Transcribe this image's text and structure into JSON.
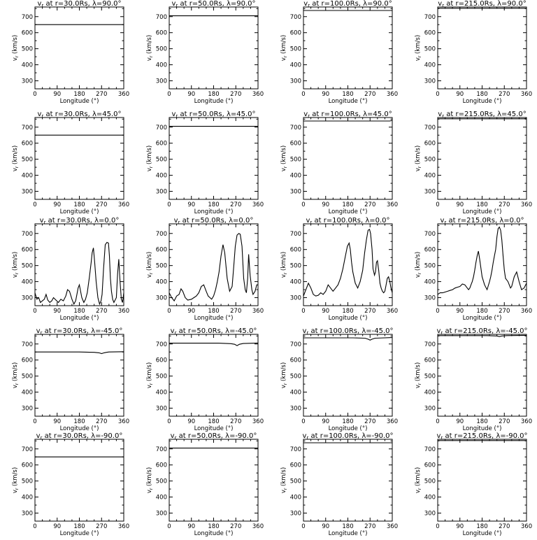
{
  "chart_data": {
    "type": "line",
    "layout": "5x4 grid of panels",
    "xlabel": "Longitude (°)",
    "ylabel": "v_r (km/s)",
    "xlim": [
      0,
      360
    ],
    "ylim": [
      250,
      760
    ],
    "xticks": [
      0,
      90,
      180,
      270,
      360
    ],
    "yticks": [
      300,
      400,
      500,
      600,
      700
    ],
    "grid": false,
    "panels": [
      {
        "title": "v_r at r=30.0Rs, λ=90.0°",
        "x": [
          0,
          360
        ],
        "y": [
          650,
          650
        ]
      },
      {
        "title": "v_r at r=50.0Rs, λ=90.0°",
        "x": [
          0,
          360
        ],
        "y": [
          705,
          705
        ]
      },
      {
        "title": "v_r at r=100.0Rs, λ=90.0°",
        "x": [
          0,
          360
        ],
        "y": [
          738,
          738
        ]
      },
      {
        "title": "v_r at r=215.0Rs, λ=90.0°",
        "x": [
          0,
          360
        ],
        "y": [
          752,
          752
        ]
      },
      {
        "title": "v_r at r=30.0Rs, λ=45.0°",
        "x": [
          0,
          360
        ],
        "y": [
          650,
          650
        ]
      },
      {
        "title": "v_r at r=50.0Rs, λ=45.0°",
        "x": [
          0,
          360
        ],
        "y": [
          705,
          705
        ]
      },
      {
        "title": "v_r at r=100.0Rs, λ=45.0°",
        "x": [
          0,
          350,
          360
        ],
        "y": [
          738,
          738,
          742
        ]
      },
      {
        "title": "v_r at r=215.0Rs, λ=45.0°",
        "x": [
          0,
          350,
          360
        ],
        "y": [
          752,
          752,
          755
        ]
      },
      {
        "title": "v_r at r=30.0Rs, λ=0.0°",
        "x": [
          0,
          8,
          15,
          22,
          30,
          38,
          45,
          52,
          60,
          68,
          75,
          85,
          95,
          105,
          115,
          125,
          132,
          140,
          150,
          158,
          165,
          170,
          175,
          180,
          190,
          198,
          205,
          212,
          220,
          228,
          232,
          237,
          242,
          248,
          255,
          262,
          268,
          272,
          278,
          285,
          292,
          298,
          302,
          306,
          310,
          315,
          320,
          330,
          335,
          340,
          345,
          350,
          355,
          360
        ],
        "y": [
          330,
          290,
          300,
          270,
          280,
          290,
          320,
          285,
          270,
          280,
          300,
          285,
          270,
          290,
          280,
          310,
          350,
          340,
          290,
          260,
          280,
          320,
          360,
          380,
          300,
          270,
          290,
          330,
          420,
          520,
          580,
          610,
          520,
          400,
          300,
          260,
          280,
          320,
          480,
          630,
          645,
          640,
          560,
          420,
          340,
          290,
          270,
          300,
          450,
          540,
          400,
          290,
          270,
          330
        ]
      },
      {
        "title": "v_r at r=50.0Rs, λ=0.0°",
        "x": [
          0,
          10,
          20,
          30,
          40,
          48,
          55,
          65,
          75,
          90,
          100,
          110,
          120,
          130,
          140,
          150,
          158,
          165,
          172,
          180,
          188,
          195,
          202,
          210,
          218,
          225,
          235,
          245,
          255,
          262,
          268,
          275,
          282,
          288,
          295,
          302,
          308,
          313,
          318,
          322,
          328,
          335,
          340,
          348,
          355,
          360
        ],
        "y": [
          330,
          300,
          280,
          310,
          320,
          355,
          340,
          300,
          285,
          290,
          300,
          310,
          330,
          370,
          380,
          340,
          310,
          300,
          290,
          310,
          350,
          400,
          460,
          560,
          630,
          580,
          420,
          340,
          370,
          500,
          620,
          690,
          700,
          695,
          620,
          420,
          350,
          330,
          420,
          570,
          440,
          350,
          320,
          340,
          380,
          380
        ]
      },
      {
        "title": "v_r at r=100.0Rs, λ=0.0°",
        "x": [
          0,
          10,
          20,
          30,
          40,
          50,
          60,
          70,
          80,
          90,
          100,
          110,
          120,
          130,
          140,
          150,
          160,
          170,
          178,
          185,
          190,
          195,
          200,
          210,
          220,
          230,
          240,
          248,
          255,
          262,
          268,
          272,
          278,
          282,
          288,
          292,
          296,
          300,
          305,
          310,
          315,
          320,
          325,
          330,
          335,
          340,
          345,
          350,
          355,
          360
        ],
        "y": [
          310,
          350,
          390,
          360,
          320,
          310,
          315,
          330,
          320,
          340,
          380,
          360,
          340,
          360,
          380,
          420,
          480,
          560,
          620,
          640,
          600,
          520,
          460,
          390,
          360,
          400,
          470,
          580,
          660,
          720,
          725,
          700,
          600,
          480,
          440,
          460,
          520,
          530,
          470,
          390,
          360,
          340,
          330,
          340,
          380,
          420,
          430,
          400,
          360,
          330
        ]
      },
      {
        "title": "v_r at r=215.0Rs, λ=0.0°",
        "x": [
          0,
          10,
          20,
          30,
          40,
          50,
          60,
          70,
          80,
          90,
          100,
          110,
          120,
          125,
          130,
          135,
          140,
          145,
          150,
          155,
          160,
          165,
          170,
          180,
          190,
          200,
          210,
          215,
          220,
          225,
          230,
          235,
          240,
          245,
          250,
          255,
          260,
          265,
          270,
          275,
          280,
          285,
          290,
          295,
          300,
          305,
          310,
          320,
          330,
          340,
          350,
          360
        ],
        "y": [
          320,
          330,
          330,
          335,
          340,
          345,
          350,
          360,
          365,
          370,
          385,
          380,
          360,
          350,
          360,
          380,
          400,
          430,
          470,
          520,
          560,
          590,
          540,
          430,
          380,
          350,
          400,
          430,
          470,
          520,
          560,
          600,
          680,
          730,
          740,
          720,
          660,
          560,
          470,
          420,
          410,
          400,
          380,
          360,
          370,
          400,
          430,
          460,
          400,
          350,
          360,
          390
        ]
      },
      {
        "title": "v_r at r=30.0Rs, λ=-45.0°",
        "x": [
          0,
          180,
          240,
          260,
          270,
          280,
          290,
          300,
          360
        ],
        "y": [
          650,
          650,
          648,
          645,
          640,
          645,
          648,
          650,
          652
        ]
      },
      {
        "title": "v_r at r=50.0Rs, λ=-45.0°",
        "x": [
          0,
          200,
          250,
          265,
          275,
          285,
          300,
          360
        ],
        "y": [
          705,
          705,
          702,
          698,
          690,
          698,
          703,
          706
        ]
      },
      {
        "title": "v_r at r=100.0Rs, λ=-45.0°",
        "x": [
          0,
          200,
          250,
          262,
          270,
          278,
          290,
          360
        ],
        "y": [
          738,
          738,
          736,
          730,
          724,
          730,
          736,
          740
        ]
      },
      {
        "title": "v_r at r=215.0Rs, λ=-45.0°",
        "x": [
          0,
          200,
          240,
          250,
          260,
          280,
          360
        ],
        "y": [
          752,
          752,
          750,
          746,
          750,
          752,
          754
        ]
      },
      {
        "title": "v_r at r=30.0Rs, λ=-90.0°",
        "x": [
          0,
          360
        ],
        "y": [
          650,
          650
        ]
      },
      {
        "title": "v_r at r=50.0Rs, λ=-90.0°",
        "x": [
          0,
          360
        ],
        "y": [
          705,
          705
        ]
      },
      {
        "title": "v_r at r=100.0Rs, λ=-90.0°",
        "x": [
          0,
          360
        ],
        "y": [
          738,
          738
        ]
      },
      {
        "title": "v_r at r=215.0Rs, λ=-90.0°",
        "x": [
          0,
          360
        ],
        "y": [
          752,
          752
        ]
      }
    ]
  }
}
